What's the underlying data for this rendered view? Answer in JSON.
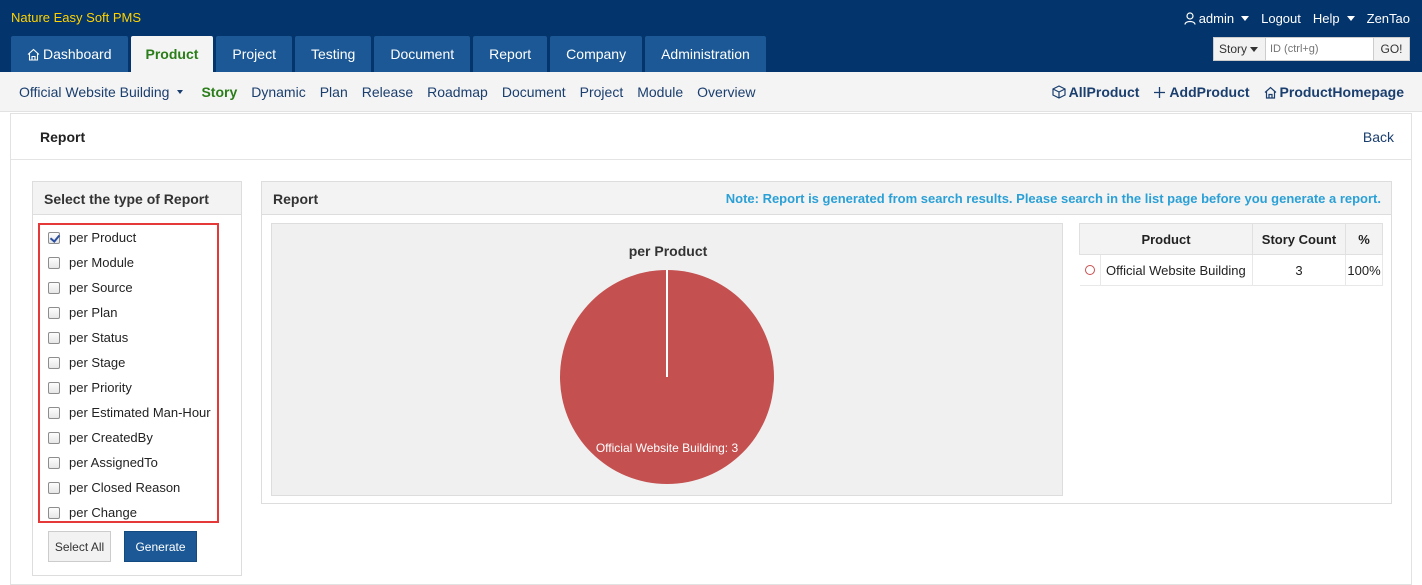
{
  "app": {
    "title": "Nature Easy Soft PMS",
    "user": "admin",
    "logout": "Logout",
    "help": "Help",
    "brand": "ZenTao"
  },
  "main_nav": {
    "tabs": [
      {
        "label": "Dashboard",
        "icon": "home-icon"
      },
      {
        "label": "Product",
        "active": true
      },
      {
        "label": "Project"
      },
      {
        "label": "Testing"
      },
      {
        "label": "Document"
      },
      {
        "label": "Report"
      },
      {
        "label": "Company"
      },
      {
        "label": "Administration"
      }
    ]
  },
  "search": {
    "type": "Story",
    "placeholder": "ID (ctrl+g)",
    "go": "GO!"
  },
  "sub_nav": {
    "product": "Official Website Building",
    "links": [
      "Story",
      "Dynamic",
      "Plan",
      "Release",
      "Roadmap",
      "Document",
      "Project",
      "Module",
      "Overview"
    ],
    "active": "Story",
    "actions": {
      "all_product": "AllProduct",
      "add_product": "AddProduct",
      "product_homepage": "ProductHomepage"
    }
  },
  "page": {
    "title": "Report",
    "back": "Back"
  },
  "report_types": {
    "heading": "Select the type of Report",
    "items": [
      {
        "label": "per Product",
        "checked": true
      },
      {
        "label": "per Module",
        "checked": false
      },
      {
        "label": "per Source",
        "checked": false
      },
      {
        "label": "per Plan",
        "checked": false
      },
      {
        "label": "per Status",
        "checked": false
      },
      {
        "label": "per Stage",
        "checked": false
      },
      {
        "label": "per Priority",
        "checked": false
      },
      {
        "label": "per Estimated Man-Hour",
        "checked": false
      },
      {
        "label": "per CreatedBy",
        "checked": false
      },
      {
        "label": "per AssignedTo",
        "checked": false
      },
      {
        "label": "per Closed Reason",
        "checked": false
      },
      {
        "label": "per Change",
        "checked": false
      }
    ],
    "select_all": "Select All",
    "generate": "Generate"
  },
  "report": {
    "heading": "Report",
    "note": "Note: Report is generated from search results. Please search in the list page before you generate a report.",
    "table": {
      "headers": [
        "Product",
        "Story Count",
        "%"
      ],
      "rows": [
        {
          "product": "Official Website Building",
          "count": "3",
          "percent": "100%"
        }
      ]
    }
  },
  "chart_data": {
    "type": "pie",
    "title": "per Product",
    "slices": [
      {
        "label": "Official Website Building",
        "value": 3,
        "display": "Official Website Building: 3",
        "color": "#c45050"
      }
    ]
  }
}
